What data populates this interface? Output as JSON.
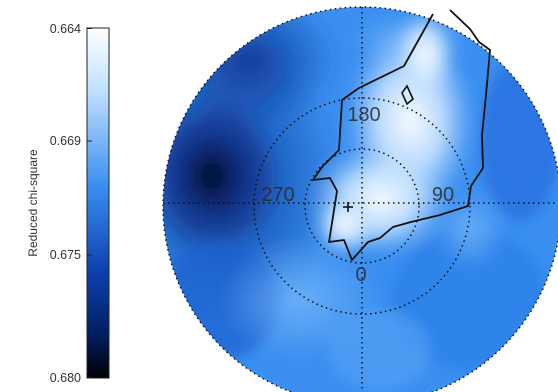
{
  "chart_data": {
    "type": "polar_contour",
    "colorbar": {
      "label": "Reduced chi-square",
      "ticks": [
        "0.664",
        "0.669",
        "0.675",
        "0.680"
      ],
      "range": [
        0.664,
        0.68
      ],
      "colors": {
        "low_value": "#ffffff",
        "mid_value": "#3b8ff0",
        "high_value": "#000000"
      }
    },
    "azimuth_labels": [
      {
        "text": "180",
        "azimuth_deg": 180
      },
      {
        "text": "270",
        "azimuth_deg": 270
      },
      {
        "text": "90",
        "azimuth_deg": 90
      },
      {
        "text": "0",
        "azimuth_deg": 0
      }
    ],
    "rings": 2,
    "crosshair": true,
    "center_marker": "+",
    "grid_style": "dotted",
    "contour_line": true
  }
}
